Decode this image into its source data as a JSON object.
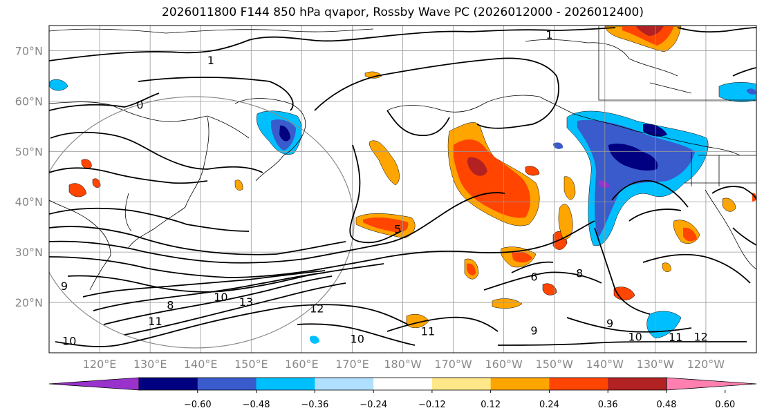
{
  "title": "2026011800 F144 850 hPa qvapor, Rossby Wave PC (2026012000 - 2026012400)",
  "map": {
    "lat_labels": [
      {
        "lat": 70,
        "label": "70°N"
      },
      {
        "lat": 60,
        "label": "60°N"
      },
      {
        "lat": 50,
        "label": "50°N"
      },
      {
        "lat": 40,
        "label": "40°N"
      },
      {
        "lat": 30,
        "label": "30°N"
      },
      {
        "lat": 20,
        "label": "20°N"
      }
    ],
    "lon_labels": [
      {
        "lon": 120,
        "label": "120°E"
      },
      {
        "lon": 130,
        "label": "130°E"
      },
      {
        "lon": 140,
        "label": "140°E"
      },
      {
        "lon": 150,
        "label": "150°E"
      },
      {
        "lon": 160,
        "label": "160°E"
      },
      {
        "lon": 170,
        "label": "170°E"
      },
      {
        "lon": 180,
        "label": "180°W"
      },
      {
        "lon": 190,
        "label": "170°W"
      },
      {
        "lon": 200,
        "label": "160°W"
      },
      {
        "lon": 210,
        "label": "150°W"
      },
      {
        "lon": 220,
        "label": "140°W"
      },
      {
        "lon": 230,
        "label": "130°W"
      },
      {
        "lon": 240,
        "label": "120°W"
      }
    ],
    "extent": {
      "lon_min": 110,
      "lon_max": 250,
      "lat_min": 10,
      "lat_max": 75
    },
    "contour_labels": [
      {
        "text": "1",
        "lon": 142,
        "lat": 67.3
      },
      {
        "text": "1",
        "lon": 209,
        "lat": 72.4
      },
      {
        "text": "0",
        "lon": 128,
        "lat": 58.5
      },
      {
        "text": "5",
        "lon": 179,
        "lat": 33.8
      },
      {
        "text": "6",
        "lon": 206,
        "lat": 24.3
      },
      {
        "text": "8",
        "lon": 215,
        "lat": 25.0
      },
      {
        "text": "9",
        "lon": 113,
        "lat": 22.5
      },
      {
        "text": "10",
        "lon": 144,
        "lat": 20.3
      },
      {
        "text": "13",
        "lon": 149,
        "lat": 19.3
      },
      {
        "text": "8",
        "lon": 134,
        "lat": 18.7
      },
      {
        "text": "11",
        "lon": 131,
        "lat": 15.5
      },
      {
        "text": "12",
        "lon": 163,
        "lat": 18.0
      },
      {
        "text": "10",
        "lon": 114,
        "lat": 11.6
      },
      {
        "text": "10",
        "lon": 171,
        "lat": 12.0
      },
      {
        "text": "11",
        "lon": 185,
        "lat": 13.5
      },
      {
        "text": "9",
        "lon": 206,
        "lat": 13.6
      },
      {
        "text": "9",
        "lon": 221,
        "lat": 15.1
      },
      {
        "text": "10",
        "lon": 226,
        "lat": 12.4
      },
      {
        "text": "11",
        "lon": 234,
        "lat": 12.3
      },
      {
        "text": "12",
        "lon": 239,
        "lat": 12.4
      }
    ]
  },
  "colorbar": {
    "colors": [
      "#9932cc",
      "#000080",
      "#3a5bcc",
      "#00bfff",
      "#b0e0ff",
      "#ffffff",
      "#ffe88a",
      "#ffa500",
      "#ff4500",
      "#b22222",
      "#ff80b0"
    ],
    "tick_labels": [
      "−0.60",
      "−0.48",
      "−0.36",
      "−0.24",
      "−0.12",
      "0.12",
      "0.24",
      "0.36",
      "0.48",
      "0.60"
    ]
  },
  "colors": {
    "neg_strong": "#000080",
    "neg_mid": "#3a5bcc",
    "neg_light": "#00bfff",
    "pos_light": "#ffa500",
    "pos_mid": "#ff4500",
    "pos_strong": "#b22222",
    "yellow": "#ffe88a"
  }
}
